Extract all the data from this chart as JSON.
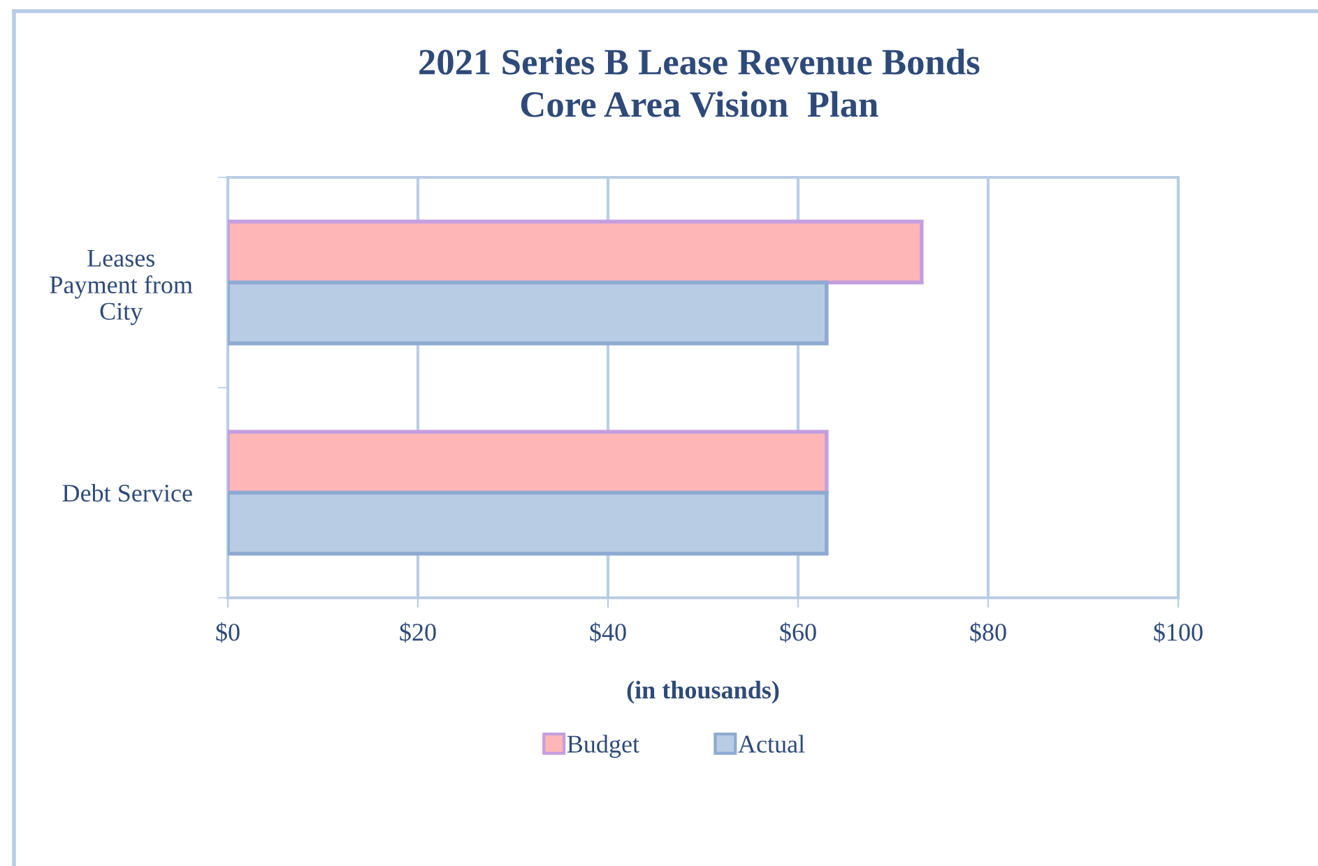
{
  "chart_data": {
    "type": "bar",
    "orientation": "horizontal",
    "title": "2021 Series B Lease Revenue Bonds\nCore Area Vision  Plan",
    "xlabel": "(in thousands)",
    "categories": [
      "Leases\nPayment from\nCity",
      "Debt Service"
    ],
    "series": [
      {
        "name": "Budget",
        "color": "#ffb6b6",
        "values": [
          73,
          63
        ]
      },
      {
        "name": "Actual",
        "color": "#b8cce4",
        "values": [
          63,
          63
        ]
      }
    ],
    "xlim": [
      0,
      100
    ],
    "xticks": [
      {
        "value": 0,
        "label": "$0"
      },
      {
        "value": 20,
        "label": "$20"
      },
      {
        "value": 40,
        "label": "$40"
      },
      {
        "value": 60,
        "label": "$60"
      },
      {
        "value": 80,
        "label": "$80"
      },
      {
        "value": 100,
        "label": "$100"
      }
    ],
    "grid": "x",
    "legend": "bottom"
  }
}
